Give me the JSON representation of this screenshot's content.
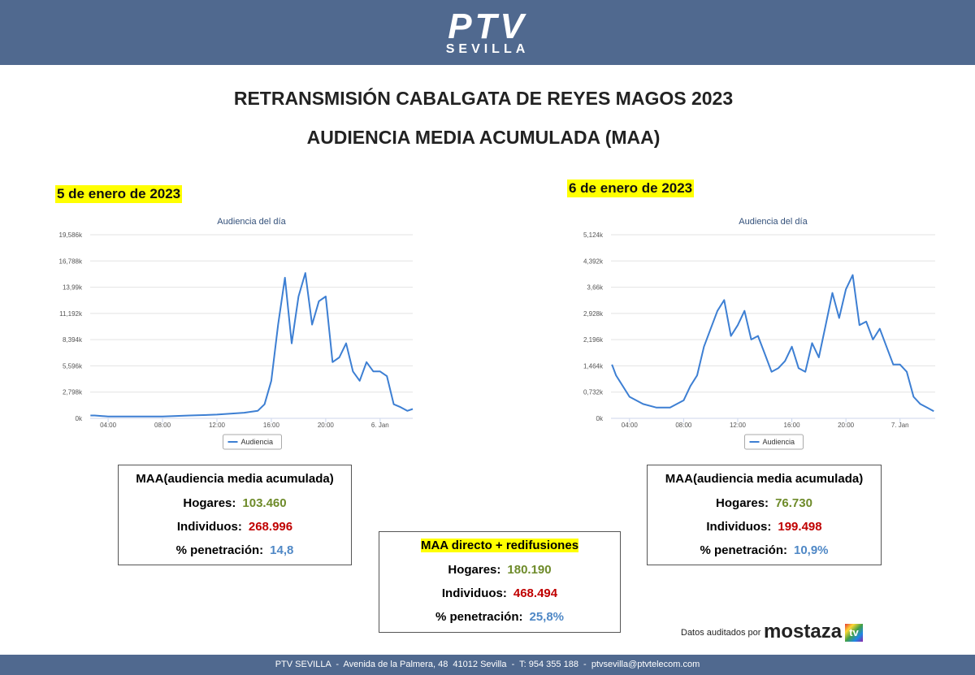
{
  "header": {
    "logo": "PTV",
    "logo_subtitle": "SEVILLA"
  },
  "title": "RETRANSMISIÓN CABALGATA DE REYES MAGOS 2023",
  "subtitle": "AUDIENCIA MEDIA ACUMULADA (MAA)",
  "chart_data": [
    {
      "type": "line",
      "date": "5 de enero de 2023",
      "title": "Audiencia del día",
      "x": [
        2.7,
        3,
        4,
        5,
        6,
        7,
        8,
        9,
        10,
        11,
        12,
        13,
        14,
        15,
        15.5,
        16,
        16.5,
        17,
        17.5,
        18,
        18.5,
        19,
        19.5,
        20,
        20.5,
        21,
        21.5,
        22,
        22.5,
        23,
        23.5,
        24,
        24.5,
        25,
        25.5,
        26,
        26.4
      ],
      "xlim": [
        2.68,
        26.4
      ],
      "xticks": [
        {
          "value": 4,
          "label": "04:00"
        },
        {
          "value": 8,
          "label": "08:00"
        },
        {
          "value": 12,
          "label": "12:00"
        },
        {
          "value": 16,
          "label": "16:00"
        },
        {
          "value": 20,
          "label": "20:00"
        },
        {
          "value": 24,
          "label": "6. Jan"
        }
      ],
      "ylim": [
        0,
        19.586
      ],
      "yticks": [
        {
          "value": 0,
          "label": "0k"
        },
        {
          "value": 2.798,
          "label": "2,798k"
        },
        {
          "value": 5.596,
          "label": "5,596k"
        },
        {
          "value": 8.394,
          "label": "8,394k"
        },
        {
          "value": 11.192,
          "label": "11,192k"
        },
        {
          "value": 13.99,
          "label": "13,99k"
        },
        {
          "value": 16.788,
          "label": "16,788k"
        },
        {
          "value": 19.586,
          "label": "19,586k"
        }
      ],
      "grid": true,
      "series": [
        {
          "name": "Audiencia",
          "color": "#3d7fd3",
          "values": [
            0.3,
            0.3,
            0.2,
            0.2,
            0.2,
            0.2,
            0.2,
            0.25,
            0.3,
            0.35,
            0.4,
            0.5,
            0.6,
            0.8,
            1.5,
            4,
            10,
            15,
            8,
            13,
            15.5,
            10,
            12.5,
            13,
            6,
            6.5,
            8,
            5,
            4,
            6,
            5,
            5,
            4.5,
            1.5,
            1.2,
            0.8,
            1.0
          ]
        }
      ]
    },
    {
      "type": "line",
      "date": "6 de enero de 2023",
      "title": "Audiencia del día",
      "x": [
        2.7,
        3,
        4,
        5,
        6,
        7,
        8,
        8.5,
        9,
        9.5,
        10,
        10.5,
        11,
        11.5,
        12,
        12.5,
        13,
        13.5,
        14,
        14.5,
        15,
        15.5,
        16,
        16.5,
        17,
        17.5,
        18,
        18.5,
        19,
        19.5,
        20,
        20.5,
        21,
        21.5,
        22,
        22.5,
        23,
        23.5,
        24,
        24.5,
        25,
        25.5,
        26,
        26.5
      ],
      "xlim": [
        2.63,
        26.6
      ],
      "xticks": [
        {
          "value": 4,
          "label": "04:00"
        },
        {
          "value": 8,
          "label": "08:00"
        },
        {
          "value": 12,
          "label": "12:00"
        },
        {
          "value": 16,
          "label": "16:00"
        },
        {
          "value": 20,
          "label": "20:00"
        },
        {
          "value": 24,
          "label": "7. Jan"
        }
      ],
      "ylim": [
        0,
        5.124
      ],
      "yticks": [
        {
          "value": 0,
          "label": "0k"
        },
        {
          "value": 0.732,
          "label": "0,732k"
        },
        {
          "value": 1.464,
          "label": "1,464k"
        },
        {
          "value": 2.196,
          "label": "2,196k"
        },
        {
          "value": 2.928,
          "label": "2,928k"
        },
        {
          "value": 3.66,
          "label": "3,66k"
        },
        {
          "value": 4.392,
          "label": "4,392k"
        },
        {
          "value": 5.124,
          "label": "5,124k"
        }
      ],
      "grid": true,
      "series": [
        {
          "name": "Audiencia",
          "color": "#3d7fd3",
          "values": [
            1.5,
            1.2,
            0.6,
            0.4,
            0.3,
            0.3,
            0.5,
            0.9,
            1.2,
            2.0,
            2.5,
            3.0,
            3.3,
            2.3,
            2.6,
            3.0,
            2.2,
            2.3,
            1.8,
            1.3,
            1.4,
            1.6,
            2.0,
            1.4,
            1.3,
            2.1,
            1.7,
            2.6,
            3.5,
            2.8,
            3.6,
            4.0,
            2.6,
            2.7,
            2.2,
            2.5,
            2.0,
            1.5,
            1.5,
            1.3,
            0.6,
            0.4,
            0.3,
            0.2
          ]
        }
      ]
    }
  ],
  "summaries": [
    {
      "title": "MAA(audiencia media acumulada)",
      "rows": [
        {
          "label": "Hogares:",
          "value": "103.460"
        },
        {
          "label": "Individuos:",
          "value": "268.996"
        },
        {
          "label": "% penetración:",
          "value": "14,8"
        }
      ]
    },
    {
      "title": "MAA directo + redifusiones",
      "rows": [
        {
          "label": "Hogares:",
          "value": "180.190"
        },
        {
          "label": "Individuos:",
          "value": "468.494"
        },
        {
          "label": "% penetración:",
          "value": "25,8%"
        }
      ]
    },
    {
      "title": "MAA(audiencia media acumulada)",
      "rows": [
        {
          "label": "Hogares:",
          "value": "76.730"
        },
        {
          "label": "Individuos:",
          "value": "199.498"
        },
        {
          "label": "% penetración:",
          "value": "10,9%"
        }
      ]
    }
  ],
  "audit": {
    "text": "Datos auditados por",
    "brand": "mostaza",
    "brand_mark": "tv"
  },
  "footer": "PTV SEVILLA  -  Avenida de la Palmera, 48  41012 Sevilla  -  T: 954 355 188  -  ptvsevilla@ptvtelecom.com"
}
